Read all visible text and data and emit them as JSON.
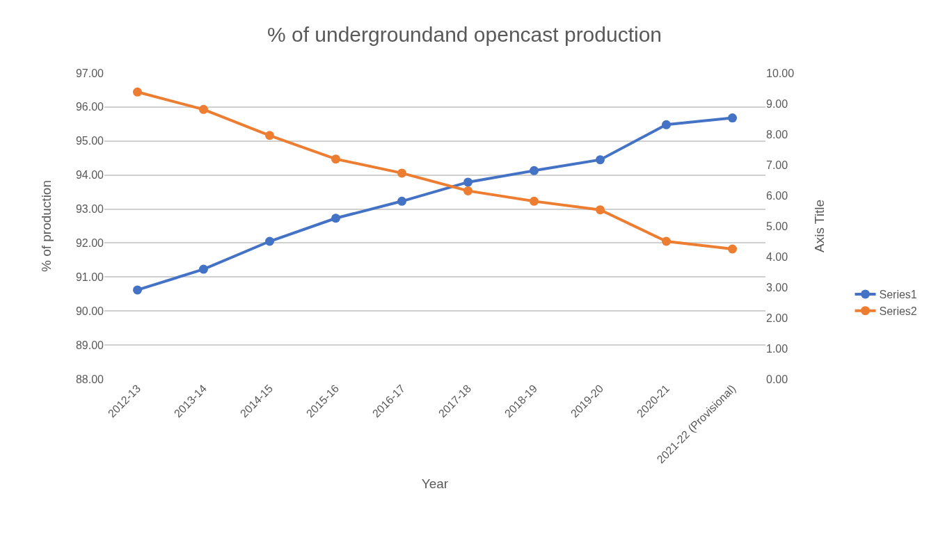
{
  "chart_data": {
    "type": "line",
    "title": "% of undergroundand opencast production",
    "xlabel": "Year",
    "ylabel": "% of production",
    "y2label": "Axis Title",
    "categories": [
      "2012-13",
      "2013-14",
      "2014-15",
      "2015-16",
      "2016-17",
      "2017-18",
      "2018-19",
      "2019-20",
      "2020-21",
      "2021-22 (Provisional)"
    ],
    "series": [
      {
        "name": "Series1",
        "color": "#4472c4",
        "values": [
          90.62,
          91.23,
          92.05,
          92.73,
          93.23,
          93.79,
          94.13,
          94.45,
          95.48,
          95.68
        ]
      },
      {
        "name": "Series2",
        "color": "#ed7d31",
        "axis": "y2",
        "values": [
          9.38,
          8.81,
          7.96,
          7.19,
          6.73,
          6.15,
          5.81,
          5.53,
          4.5,
          4.25
        ]
      }
    ],
    "ylim": [
      88,
      97
    ],
    "yticks": [
      {
        "value": 88,
        "label": "88.00"
      },
      {
        "value": 89,
        "label": "89.00"
      },
      {
        "value": 90,
        "label": "90.00"
      },
      {
        "value": 91,
        "label": "91.00"
      },
      {
        "value": 92,
        "label": "92.00"
      },
      {
        "value": 93,
        "label": "93.00"
      },
      {
        "value": 94,
        "label": "94.00"
      },
      {
        "value": 95,
        "label": "95.00"
      },
      {
        "value": 96,
        "label": "96.00"
      },
      {
        "value": 97,
        "label": "97.00"
      }
    ],
    "y2lim": [
      0,
      10
    ],
    "y2ticks": [
      {
        "value": 0,
        "label": "0.00"
      },
      {
        "value": 1,
        "label": "1.00"
      },
      {
        "value": 2,
        "label": "2.00"
      },
      {
        "value": 3,
        "label": "3.00"
      },
      {
        "value": 4,
        "label": "4.00"
      },
      {
        "value": 5,
        "label": "5.00"
      },
      {
        "value": 6,
        "label": "6.00"
      },
      {
        "value": 7,
        "label": "7.00"
      },
      {
        "value": 8,
        "label": "8.00"
      },
      {
        "value": 9,
        "label": "9.00"
      },
      {
        "value": 10,
        "label": "10.00"
      }
    ],
    "grid": "y",
    "legend": "right",
    "marker": "circle",
    "line_style": "solid"
  }
}
